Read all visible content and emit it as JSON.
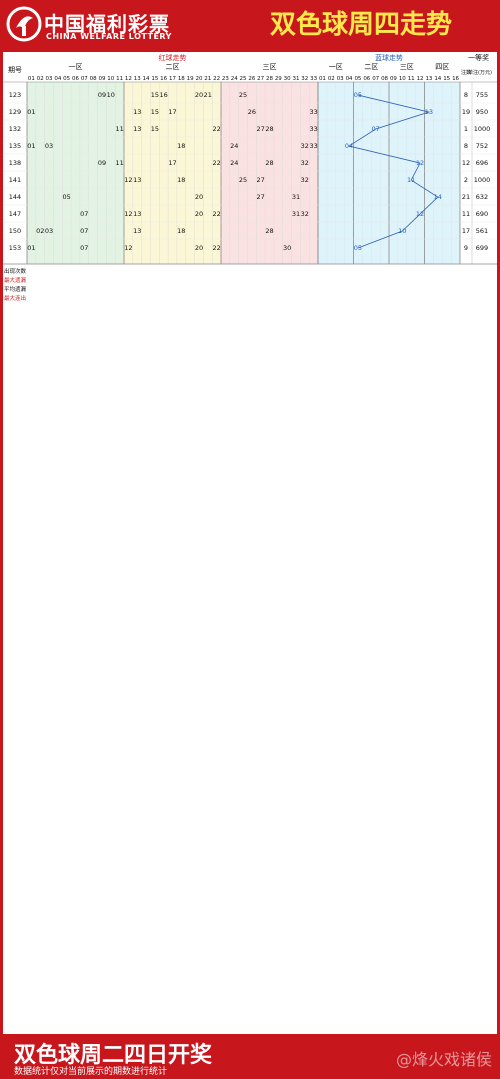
{
  "header": {
    "logo_cn": "中国福利彩票",
    "logo_en": "CHINA WELFARE LOTTERY",
    "title": "双色球周四走势"
  },
  "footer": {
    "title": "双色球周二四日开奖",
    "note": "数据统计仅对当前展示的期数进行统计",
    "watermark": "@烽火戏诸侯"
  },
  "colors": {
    "frame_red": "#c8161d",
    "title_yellow": "#ffe94a",
    "zone1_bg": "#e3f3e3",
    "zone2_bg": "#fbf7d6",
    "zone3_bg": "#fbe2e2",
    "blue_bg": "#dff3fb",
    "text_black": "#111111",
    "text_red": "#d42020",
    "blue_line": "#2a62b8"
  },
  "chart_data": {
    "type": "table",
    "title": "双色球周四走势",
    "column_headers": {
      "issue": "期号",
      "red": "红球走势",
      "red_zones": [
        "一区",
        "二区",
        "三区"
      ],
      "blue": "蓝球走势",
      "blue_zones": [
        "一区",
        "二区",
        "三区",
        "四区"
      ],
      "first_prize": "一等奖",
      "first_prize_cols": [
        "注数",
        "单注(万元)"
      ]
    },
    "red_numbers": [
      "01",
      "02",
      "03",
      "04",
      "05",
      "06",
      "07",
      "08",
      "09",
      "10",
      "11",
      "12",
      "13",
      "14",
      "15",
      "16",
      "17",
      "18",
      "19",
      "20",
      "21",
      "22",
      "23",
      "24",
      "25",
      "26",
      "27",
      "28",
      "29",
      "30",
      "31",
      "32",
      "33"
    ],
    "blue_numbers": [
      "01",
      "02",
      "03",
      "04",
      "05",
      "06",
      "07",
      "08",
      "09",
      "10",
      "11",
      "12",
      "13",
      "14",
      "15",
      "16"
    ],
    "draws": [
      {
        "issue": "123",
        "red": [
          10,
          25,
          20,
          21,
          9,
          15,
          16
        ],
        "blue": 5,
        "count": 8,
        "prize": 755
      },
      {
        "issue": "129",
        "red": [
          1,
          13,
          15,
          17,
          26,
          33
        ],
        "blue": 13,
        "count": 19,
        "prize": 950
      },
      {
        "issue": "132",
        "red": [
          11,
          13,
          15,
          22,
          27,
          28,
          33
        ],
        "blue": 7,
        "count": 1,
        "prize": 1000
      },
      {
        "issue": "135",
        "red": [
          1,
          3,
          18,
          24,
          32,
          33
        ],
        "blue": 4,
        "count": 8,
        "prize": 752
      },
      {
        "issue": "138",
        "red": [
          9,
          11,
          17,
          22,
          24,
          28,
          32
        ],
        "blue": 12,
        "count": 12,
        "prize": 696
      },
      {
        "issue": "141",
        "red": [
          12,
          13,
          18,
          25,
          27,
          32
        ],
        "blue": 11,
        "count": 2,
        "prize": 1000
      },
      {
        "issue": "144",
        "red": [
          5,
          20,
          27,
          31
        ],
        "blue": 14,
        "count": 21,
        "prize": 632
      },
      {
        "issue": "147",
        "red": [
          7,
          12,
          13,
          20,
          22,
          31,
          32
        ],
        "blue": 12,
        "count": 11,
        "prize": 690
      },
      {
        "issue": "150",
        "red": [
          2,
          3,
          7,
          13,
          18,
          28
        ],
        "blue": 10,
        "count": 17,
        "prize": 561
      },
      {
        "issue": "153",
        "red": [
          1,
          7,
          12,
          20,
          22,
          30
        ],
        "blue": 5,
        "count": 9,
        "prize": 699
      }
    ],
    "stats_labels": [
      "出现次数",
      "最大遗漏",
      "平均遗漏",
      "最大连出"
    ]
  }
}
